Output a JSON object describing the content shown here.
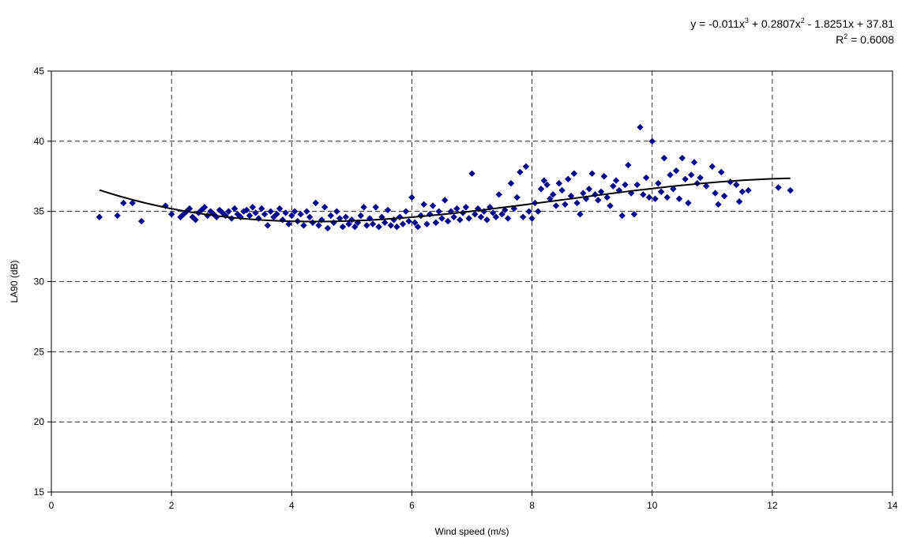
{
  "chart_data": {
    "type": "scatter",
    "title": "",
    "xlabel": "Wind speed (m/s)",
    "ylabel": "LA90 (dB)",
    "xlim": [
      0,
      14
    ],
    "ylim": [
      15,
      45
    ],
    "x_ticks": [
      "0",
      "2",
      "4",
      "6",
      "8",
      "10",
      "12",
      "14"
    ],
    "y_ticks": [
      "15",
      "20",
      "25",
      "30",
      "35",
      "40",
      "45"
    ],
    "grid": "dashed",
    "marker_color": "#00008B",
    "trendline": {
      "type": "polynomial",
      "order": 3,
      "coefficients": [
        -0.011,
        0.2807,
        -1.8251,
        37.81
      ],
      "r2": 0.6008,
      "x_range": [
        0.8,
        12.3
      ],
      "color": "#000000",
      "equation_line1_parts": [
        "y = -0.011x",
        "3",
        " + 0.2807x",
        "2",
        " - 1.8251x + 37.81"
      ],
      "equation_line2_parts": [
        "R",
        "2",
        " = 0.6008"
      ]
    },
    "series": [
      {
        "points": [
          [
            0.8,
            34.6
          ],
          [
            1.1,
            34.7
          ],
          [
            1.2,
            35.6
          ],
          [
            1.35,
            35.6
          ],
          [
            1.5,
            34.3
          ],
          [
            1.9,
            35.4
          ],
          [
            2.0,
            34.8
          ],
          [
            2.15,
            34.6
          ],
          [
            2.2,
            34.8
          ],
          [
            2.25,
            35.0
          ],
          [
            2.3,
            35.2
          ],
          [
            2.35,
            34.6
          ],
          [
            2.4,
            34.4
          ],
          [
            2.45,
            34.9
          ],
          [
            2.5,
            35.1
          ],
          [
            2.55,
            35.3
          ],
          [
            2.6,
            34.7
          ],
          [
            2.65,
            35.0
          ],
          [
            2.7,
            34.8
          ],
          [
            2.75,
            34.6
          ],
          [
            2.8,
            35.1
          ],
          [
            2.85,
            34.9
          ],
          [
            2.9,
            34.7
          ],
          [
            2.95,
            35.0
          ],
          [
            3.0,
            34.5
          ],
          [
            3.05,
            35.2
          ],
          [
            3.1,
            34.8
          ],
          [
            3.15,
            34.6
          ],
          [
            3.2,
            35.0
          ],
          [
            3.25,
            35.1
          ],
          [
            3.3,
            34.7
          ],
          [
            3.35,
            35.3
          ],
          [
            3.4,
            34.9
          ],
          [
            3.45,
            34.5
          ],
          [
            3.5,
            35.2
          ],
          [
            3.55,
            34.8
          ],
          [
            3.6,
            34.0
          ],
          [
            3.65,
            35.0
          ],
          [
            3.7,
            34.6
          ],
          [
            3.75,
            34.8
          ],
          [
            3.8,
            35.2
          ],
          [
            3.85,
            34.4
          ],
          [
            3.9,
            34.9
          ],
          [
            3.95,
            34.1
          ],
          [
            4.0,
            34.7
          ],
          [
            4.05,
            35.0
          ],
          [
            4.1,
            34.3
          ],
          [
            4.15,
            34.8
          ],
          [
            4.2,
            34.0
          ],
          [
            4.25,
            35.0
          ],
          [
            4.3,
            34.6
          ],
          [
            4.35,
            34.2
          ],
          [
            4.4,
            35.6
          ],
          [
            4.45,
            34.0
          ],
          [
            4.5,
            34.4
          ],
          [
            4.55,
            35.3
          ],
          [
            4.6,
            33.8
          ],
          [
            4.65,
            34.7
          ],
          [
            4.7,
            34.2
          ],
          [
            4.75,
            35.0
          ],
          [
            4.8,
            34.5
          ],
          [
            4.85,
            33.9
          ],
          [
            4.9,
            34.6
          ],
          [
            4.95,
            34.1
          ],
          [
            5.0,
            34.4
          ],
          [
            5.05,
            33.9
          ],
          [
            5.1,
            34.2
          ],
          [
            5.15,
            34.7
          ],
          [
            5.2,
            35.3
          ],
          [
            5.25,
            34.0
          ],
          [
            5.3,
            34.5
          ],
          [
            5.35,
            34.1
          ],
          [
            5.4,
            35.3
          ],
          [
            5.45,
            33.9
          ],
          [
            5.5,
            34.6
          ],
          [
            5.55,
            34.2
          ],
          [
            5.6,
            35.1
          ],
          [
            5.65,
            34.0
          ],
          [
            5.7,
            34.4
          ],
          [
            5.75,
            33.9
          ],
          [
            5.8,
            34.6
          ],
          [
            5.85,
            34.1
          ],
          [
            5.9,
            35.0
          ],
          [
            5.95,
            34.3
          ],
          [
            6.0,
            36.0
          ],
          [
            6.05,
            34.2
          ],
          [
            6.1,
            33.9
          ],
          [
            6.15,
            34.7
          ],
          [
            6.2,
            35.5
          ],
          [
            6.25,
            34.1
          ],
          [
            6.3,
            34.8
          ],
          [
            6.35,
            35.4
          ],
          [
            6.4,
            34.2
          ],
          [
            6.45,
            35.0
          ],
          [
            6.5,
            34.5
          ],
          [
            6.55,
            35.8
          ],
          [
            6.6,
            34.3
          ],
          [
            6.65,
            35.0
          ],
          [
            6.7,
            34.6
          ],
          [
            6.75,
            35.2
          ],
          [
            6.8,
            34.4
          ],
          [
            6.85,
            34.9
          ],
          [
            6.9,
            35.3
          ],
          [
            6.95,
            34.5
          ],
          [
            7.0,
            37.7
          ],
          [
            7.05,
            34.8
          ],
          [
            7.1,
            35.2
          ],
          [
            7.15,
            34.6
          ],
          [
            7.2,
            35.0
          ],
          [
            7.25,
            34.4
          ],
          [
            7.3,
            35.3
          ],
          [
            7.35,
            34.9
          ],
          [
            7.4,
            34.6
          ],
          [
            7.45,
            36.2
          ],
          [
            7.5,
            34.8
          ],
          [
            7.55,
            35.1
          ],
          [
            7.6,
            34.5
          ],
          [
            7.65,
            37.0
          ],
          [
            7.7,
            35.2
          ],
          [
            7.75,
            36.0
          ],
          [
            7.8,
            37.8
          ],
          [
            7.85,
            34.6
          ],
          [
            7.9,
            38.2
          ],
          [
            7.95,
            35.0
          ],
          [
            8.0,
            34.5
          ],
          [
            8.05,
            35.6
          ],
          [
            8.1,
            35.0
          ],
          [
            8.15,
            36.6
          ],
          [
            8.2,
            37.2
          ],
          [
            8.25,
            36.9
          ],
          [
            8.3,
            35.9
          ],
          [
            8.35,
            36.2
          ],
          [
            8.4,
            35.4
          ],
          [
            8.45,
            37.0
          ],
          [
            8.5,
            36.5
          ],
          [
            8.55,
            35.5
          ],
          [
            8.6,
            37.3
          ],
          [
            8.65,
            36.1
          ],
          [
            8.7,
            37.7
          ],
          [
            8.75,
            35.6
          ],
          [
            8.8,
            34.8
          ],
          [
            8.85,
            36.3
          ],
          [
            8.9,
            35.9
          ],
          [
            8.95,
            36.6
          ],
          [
            9.0,
            37.7
          ],
          [
            9.05,
            36.2
          ],
          [
            9.1,
            35.8
          ],
          [
            9.15,
            36.4
          ],
          [
            9.2,
            37.5
          ],
          [
            9.25,
            36.0
          ],
          [
            9.3,
            35.4
          ],
          [
            9.35,
            36.8
          ],
          [
            9.4,
            37.2
          ],
          [
            9.45,
            36.5
          ],
          [
            9.5,
            34.7
          ],
          [
            9.55,
            36.9
          ],
          [
            9.6,
            38.3
          ],
          [
            9.65,
            36.3
          ],
          [
            9.7,
            34.8
          ],
          [
            9.75,
            36.9
          ],
          [
            9.8,
            41.0
          ],
          [
            9.85,
            36.2
          ],
          [
            9.9,
            37.4
          ],
          [
            9.95,
            36.0
          ],
          [
            10.0,
            40.0
          ],
          [
            10.05,
            35.9
          ],
          [
            10.1,
            37.0
          ],
          [
            10.15,
            36.4
          ],
          [
            10.2,
            38.8
          ],
          [
            10.25,
            36.0
          ],
          [
            10.3,
            37.6
          ],
          [
            10.35,
            36.6
          ],
          [
            10.4,
            37.9
          ],
          [
            10.45,
            35.9
          ],
          [
            10.5,
            38.8
          ],
          [
            10.55,
            37.3
          ],
          [
            10.6,
            35.6
          ],
          [
            10.65,
            37.6
          ],
          [
            10.7,
            38.5
          ],
          [
            10.75,
            37.0
          ],
          [
            10.8,
            37.4
          ],
          [
            10.9,
            36.8
          ],
          [
            11.0,
            38.2
          ],
          [
            11.05,
            36.3
          ],
          [
            11.1,
            35.5
          ],
          [
            11.15,
            37.8
          ],
          [
            11.2,
            36.1
          ],
          [
            11.3,
            37.1
          ],
          [
            11.4,
            36.9
          ],
          [
            11.45,
            35.7
          ],
          [
            11.5,
            36.4
          ],
          [
            11.6,
            36.5
          ],
          [
            12.1,
            36.7
          ],
          [
            12.3,
            36.5
          ]
        ]
      }
    ]
  }
}
